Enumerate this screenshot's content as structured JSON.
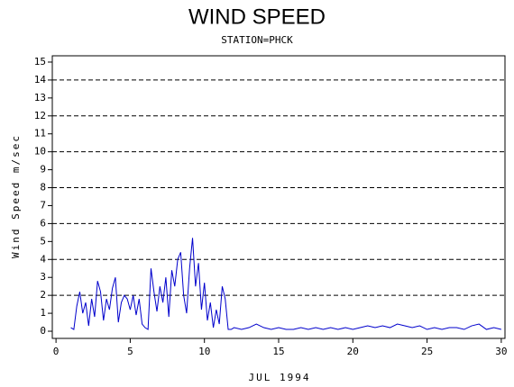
{
  "chart_data": {
    "type": "line",
    "title": "WIND SPEED",
    "subtitle": "STATION=PHCK",
    "y_label": "Wind Speed m/sec",
    "x_label": "JUL 1994",
    "xlim": [
      -0.25,
      30.25
    ],
    "xticks": [
      0,
      5,
      10,
      15,
      20,
      25,
      30
    ],
    "ylim": [
      -0.4,
      15.35
    ],
    "yticks": [
      0,
      1,
      2,
      3,
      4,
      5,
      6,
      7,
      8,
      9,
      10,
      11,
      12,
      13,
      14,
      15
    ],
    "grid": true,
    "ygrid": [
      2,
      4,
      6,
      8,
      10,
      12,
      14
    ],
    "series": [
      {
        "color": "#0000cc",
        "x": [
          1.0,
          1.2,
          1.4,
          1.6,
          1.8,
          2.0,
          2.2,
          2.4,
          2.6,
          2.8,
          3.0,
          3.2,
          3.4,
          3.6,
          3.8,
          4.0,
          4.2,
          4.4,
          4.6,
          4.8,
          5.0,
          5.2,
          5.4,
          5.6,
          5.8,
          6.0,
          6.2,
          6.4,
          6.6,
          6.8,
          7.0,
          7.2,
          7.4,
          7.6,
          7.8,
          8.0,
          8.2,
          8.4,
          8.6,
          8.8,
          9.0,
          9.2,
          9.4,
          9.6,
          9.8,
          10.0,
          10.2,
          10.4,
          10.6,
          10.8,
          11.0,
          11.2,
          11.4,
          11.6,
          11.8,
          12.0,
          12.5,
          13.0,
          13.5,
          14.0,
          14.5,
          15.0,
          15.5,
          16.0,
          16.5,
          17.0,
          17.5,
          18.0,
          18.5,
          19.0,
          19.5,
          20.0,
          20.5,
          21.0,
          21.5,
          22.0,
          22.5,
          23.0,
          23.5,
          24.0,
          24.5,
          25.0,
          25.5,
          26.0,
          26.5,
          27.0,
          27.5,
          28.0,
          28.5,
          29.0,
          29.5,
          30.0
        ],
        "values": [
          0.2,
          0.1,
          1.4,
          2.2,
          1.0,
          1.6,
          0.3,
          1.8,
          0.8,
          2.8,
          2.2,
          0.6,
          1.8,
          1.2,
          2.4,
          3.0,
          0.5,
          1.6,
          2.0,
          1.8,
          1.2,
          2.0,
          0.9,
          1.8,
          0.4,
          0.2,
          0.1,
          3.5,
          2.2,
          1.1,
          2.5,
          1.6,
          3.0,
          0.8,
          3.4,
          2.5,
          4.0,
          4.4,
          2.0,
          1.0,
          3.5,
          5.2,
          2.5,
          3.8,
          1.2,
          2.7,
          0.6,
          1.6,
          0.2,
          1.2,
          0.4,
          2.5,
          1.8,
          0.1,
          0.1,
          0.2,
          0.1,
          0.2,
          0.4,
          0.2,
          0.1,
          0.2,
          0.1,
          0.1,
          0.2,
          0.1,
          0.2,
          0.1,
          0.2,
          0.1,
          0.2,
          0.1,
          0.2,
          0.3,
          0.2,
          0.3,
          0.2,
          0.4,
          0.3,
          0.2,
          0.3,
          0.1,
          0.2,
          0.1,
          0.2,
          0.2,
          0.1,
          0.3,
          0.4,
          0.1,
          0.2,
          0.1
        ]
      }
    ]
  }
}
